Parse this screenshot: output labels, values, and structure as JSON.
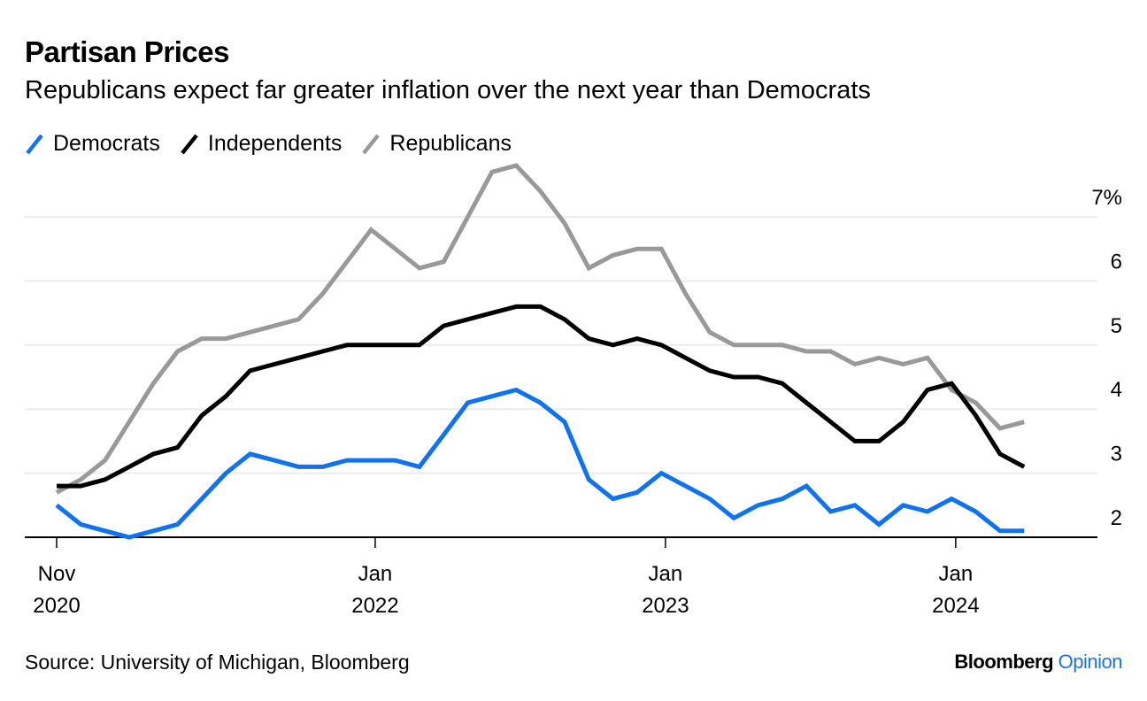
{
  "header": {
    "title": "Partisan Prices",
    "subtitle": "Republicans expect far greater inflation over the next year than Democrats"
  },
  "footer": {
    "source": "Source: University of Michigan, Bloomberg",
    "brand_main": "Bloomberg",
    "brand_accent": "Opinion"
  },
  "colors": {
    "democrats": "#0f72f0",
    "independents": "#000000",
    "republicans": "#999999",
    "gridline": "#ececec",
    "axis": "#000000",
    "brand_accent": "#1a73e8"
  },
  "chart_data": {
    "type": "line",
    "title": "Partisan Prices",
    "subtitle": "Republicans expect far greater inflation over the next year than Democrats",
    "xlabel": "",
    "ylabel": "",
    "y_unit": "%",
    "ylim": [
      2,
      7
    ],
    "yticks": [
      2,
      3,
      4,
      5,
      6,
      7
    ],
    "ytick_labels": [
      "2",
      "3",
      "4",
      "5",
      "6",
      "7%"
    ],
    "y_axis_side": "right",
    "grid": true,
    "legend_placement": "top-left",
    "x_start": "Nov 2020",
    "x_frequency": "monthly",
    "xticks": [
      {
        "line1": "Nov",
        "line2": "2020",
        "month_index": 0
      },
      {
        "line1": "Jan",
        "line2": "2022",
        "month_index": 13.17
      },
      {
        "line1": "Jan",
        "line2": "2023",
        "month_index": 25.17
      },
      {
        "line1": "Jan",
        "line2": "2024",
        "month_index": 37.17
      }
    ],
    "series": [
      {
        "name": "Democrats",
        "key": "democrats",
        "values": [
          2.5,
          2.2,
          2.1,
          2.0,
          2.1,
          2.2,
          2.6,
          3.0,
          3.3,
          3.2,
          3.1,
          3.1,
          3.2,
          3.2,
          3.2,
          3.1,
          3.6,
          4.1,
          4.2,
          4.3,
          4.1,
          3.8,
          2.9,
          2.6,
          2.7,
          3.0,
          2.8,
          2.6,
          2.3,
          2.5,
          2.6,
          2.8,
          2.4,
          2.5,
          2.2,
          2.5,
          2.4,
          2.6,
          2.4,
          2.1,
          2.1
        ]
      },
      {
        "name": "Independents",
        "key": "independents",
        "values": [
          2.8,
          2.8,
          2.9,
          3.1,
          3.3,
          3.4,
          3.9,
          4.2,
          4.6,
          4.7,
          4.8,
          4.9,
          5.0,
          5.0,
          5.0,
          5.0,
          5.3,
          5.4,
          5.5,
          5.6,
          5.6,
          5.4,
          5.1,
          5.0,
          5.1,
          5.0,
          4.8,
          4.6,
          4.5,
          4.5,
          4.4,
          4.1,
          3.8,
          3.5,
          3.5,
          3.8,
          4.3,
          4.4,
          3.9,
          3.3,
          3.1
        ]
      },
      {
        "name": "Republicans",
        "key": "republicans",
        "values": [
          2.7,
          2.9,
          3.2,
          3.8,
          4.4,
          4.9,
          5.1,
          5.1,
          5.2,
          5.3,
          5.4,
          5.8,
          6.3,
          6.8,
          6.5,
          6.2,
          6.3,
          7.0,
          7.7,
          7.8,
          7.4,
          6.9,
          6.2,
          6.4,
          6.5,
          6.5,
          5.8,
          5.2,
          5.0,
          5.0,
          5.0,
          4.9,
          4.9,
          4.7,
          4.8,
          4.7,
          4.8,
          4.3,
          4.1,
          3.7,
          3.8
        ]
      }
    ]
  }
}
